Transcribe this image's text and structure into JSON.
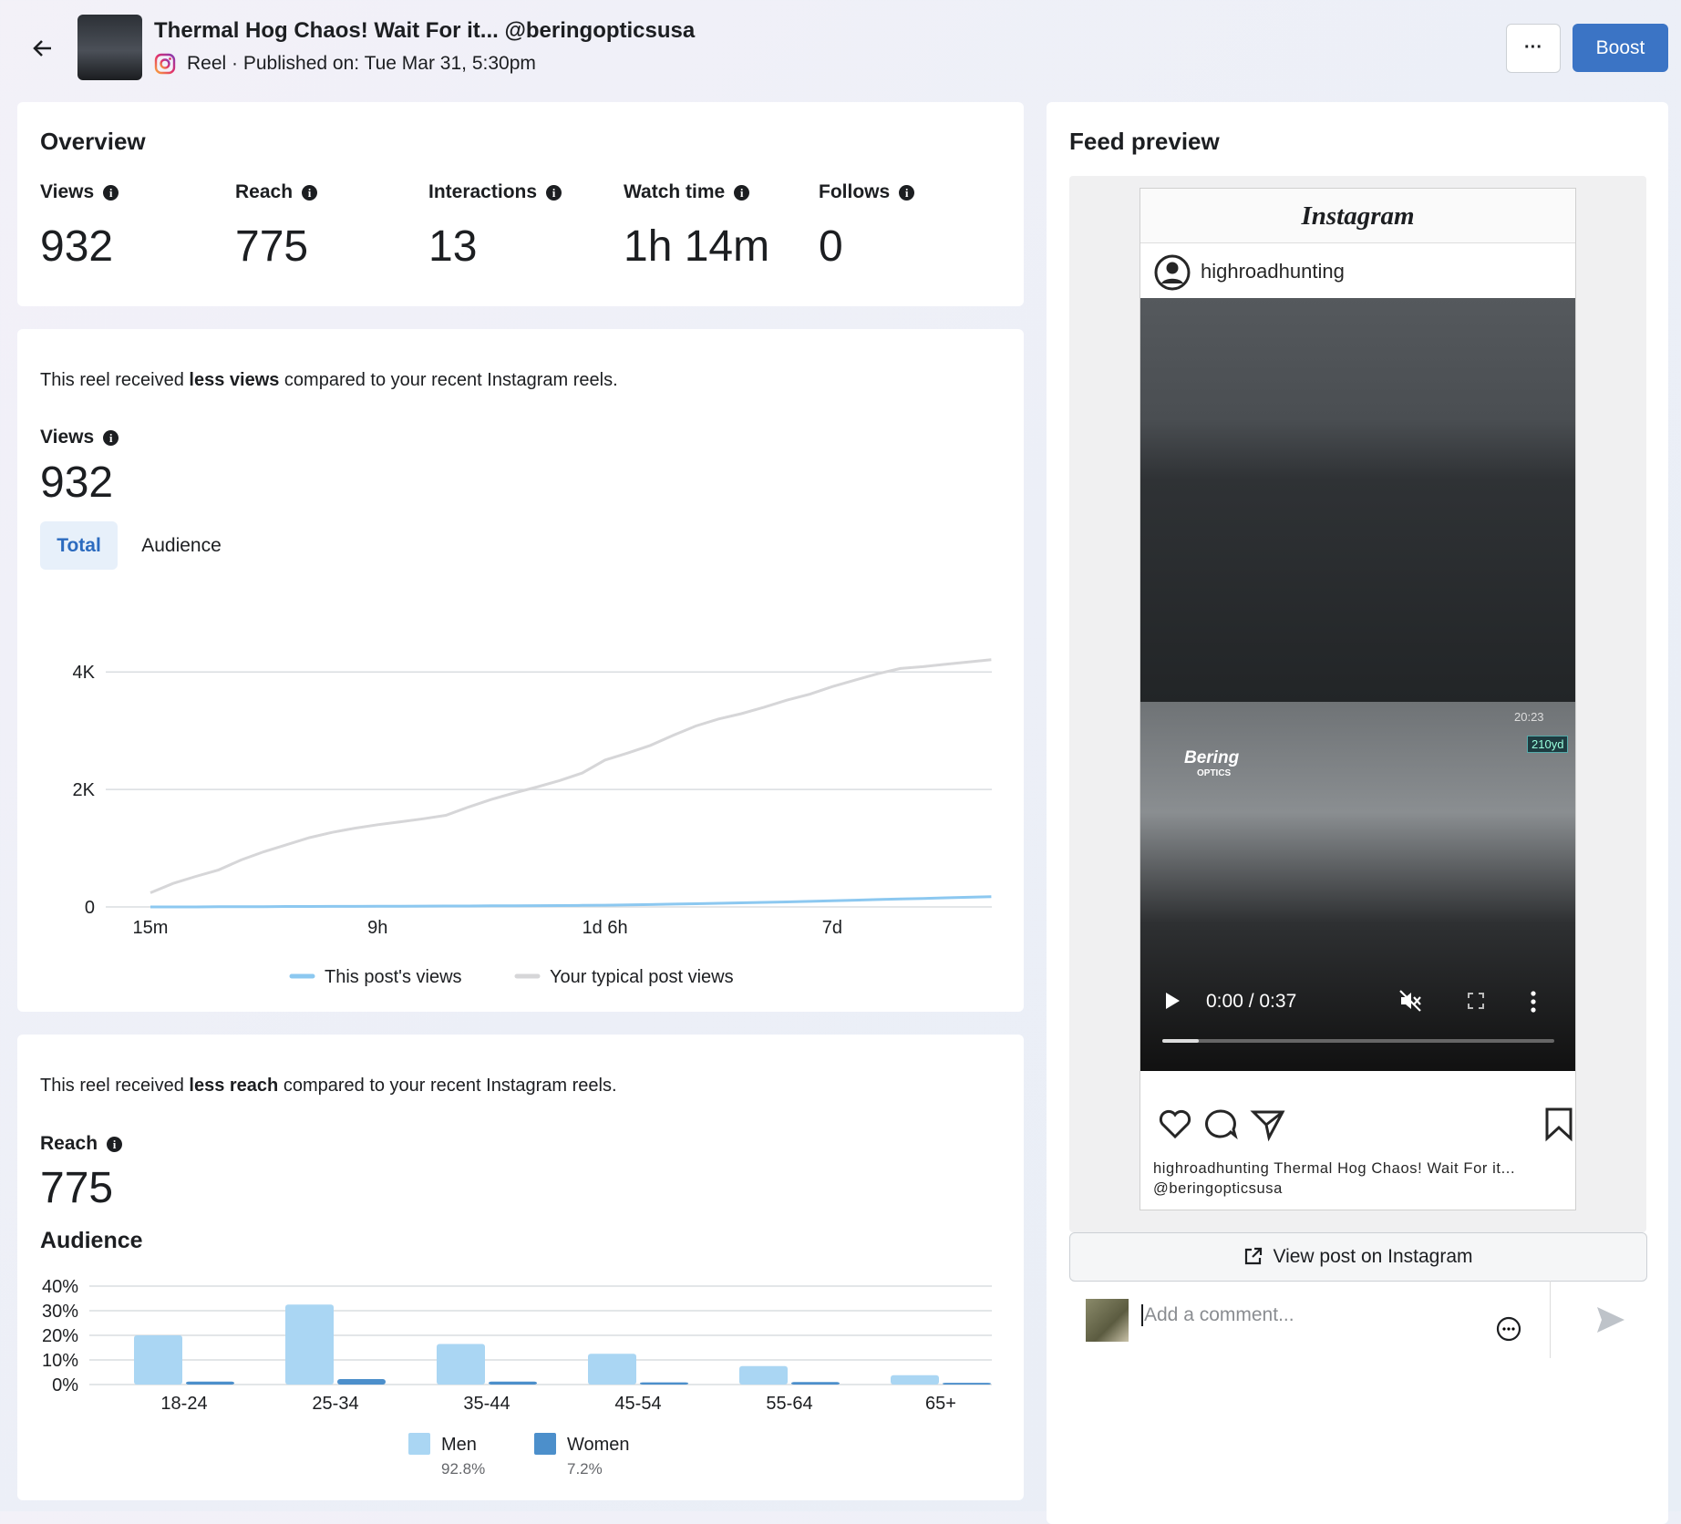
{
  "header": {
    "title": "Thermal Hog Chaos! Wait For it... @beringopticsusa",
    "subtitle": "Reel · Published on: Tue Mar 31, 5:30pm",
    "more": "···",
    "boost": "Boost"
  },
  "overview": {
    "title": "Overview",
    "metrics": [
      {
        "label": "Views",
        "value": "932"
      },
      {
        "label": "Reach",
        "value": "775"
      },
      {
        "label": "Interactions",
        "value": "13"
      },
      {
        "label": "Watch time",
        "value": "1h 14m"
      },
      {
        "label": "Follows",
        "value": "0"
      }
    ]
  },
  "views_card": {
    "note": [
      "This reel received ",
      "less views",
      " compared to your recent Instagram reels."
    ],
    "metric_label": "Views",
    "metric_value": "932",
    "tabs": [
      "Total",
      "Audience"
    ]
  },
  "reach_card": {
    "note": [
      "This reel received ",
      "less reach",
      " compared to your recent Instagram reels."
    ],
    "metric_label": "Reach",
    "metric_value": "775",
    "section": "Audience"
  },
  "chart_data": [
    {
      "type": "line",
      "categories": [
        "15m",
        null,
        null,
        null,
        null,
        null,
        null,
        null,
        null,
        null,
        "9h",
        null,
        null,
        null,
        null,
        null,
        null,
        null,
        null,
        null,
        "1d 6h",
        null,
        null,
        null,
        null,
        null,
        null,
        null,
        null,
        null,
        "7d",
        null,
        null,
        null,
        null,
        null,
        null,
        null
      ],
      "series": [
        {
          "name": "This post's views",
          "color": "#8cc8f0",
          "values": [
            0,
            0,
            0,
            5,
            5,
            5,
            8,
            8,
            10,
            10,
            12,
            12,
            14,
            15,
            16,
            18,
            20,
            22,
            24,
            26,
            30,
            35,
            40,
            48,
            55,
            62,
            70,
            78,
            85,
            95,
            105,
            115,
            125,
            135,
            145,
            155,
            165,
            175
          ]
        },
        {
          "name": "Your typical post views",
          "color": "#d6d6d8",
          "values": [
            240,
            400,
            520,
            630,
            800,
            940,
            1060,
            1180,
            1270,
            1340,
            1400,
            1450,
            1500,
            1560,
            1700,
            1830,
            1940,
            2040,
            2150,
            2280,
            2500,
            2620,
            2750,
            2920,
            3080,
            3200,
            3290,
            3400,
            3520,
            3620,
            3750,
            3860,
            3970,
            4060,
            4090,
            4130,
            4170,
            4210
          ]
        }
      ],
      "ylim": [
        0,
        4500
      ],
      "yticks": [
        0,
        {
          "value": 2000,
          "label": "2K"
        },
        {
          "value": 4000,
          "label": "4K"
        }
      ],
      "grid": true
    },
    {
      "type": "bar",
      "categories": [
        "18-24",
        "25-34",
        "35-44",
        "45-54",
        "55-64",
        "65+"
      ],
      "series": [
        {
          "name": "Men",
          "color": "#aad6f3",
          "share": "92.8%",
          "values": [
            20,
            32.5,
            16.5,
            12.5,
            7.5,
            3.8
          ]
        },
        {
          "name": "Women",
          "color": "#4c8fcb",
          "share": "7.2%",
          "values": [
            1.2,
            2.2,
            1.2,
            0.9,
            1.0,
            0.7
          ]
        }
      ],
      "ylim": [
        0,
        40
      ],
      "yticks": [
        {
          "value": 0,
          "label": "0%"
        },
        {
          "value": 10,
          "label": "10%"
        },
        {
          "value": 20,
          "label": "20%"
        },
        {
          "value": 30,
          "label": "30%"
        },
        {
          "value": 40,
          "label": "40%"
        }
      ],
      "grid": true
    }
  ],
  "preview": {
    "title": "Feed preview",
    "brand": "Instagram",
    "username": "highroadhunting",
    "video_overlay": [
      "20:23",
      "210yd",
      "Bering",
      "OPTICS"
    ],
    "time": "0:00 / 0:37",
    "caption": [
      "highroadhunting Thermal Hog Chaos! Wait For it...",
      "@beringopticsusa"
    ],
    "view_button": "View post on Instagram",
    "comment_placeholder": "Add a comment..."
  }
}
